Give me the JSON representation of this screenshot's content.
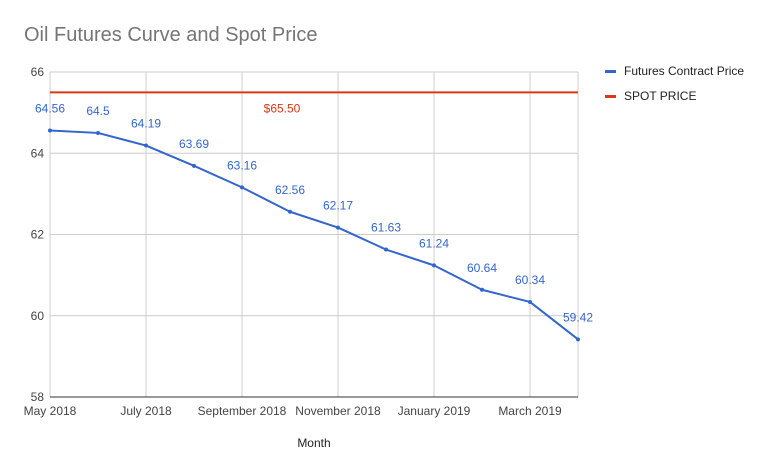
{
  "chart_data": {
    "type": "line",
    "title": "Oil Futures Curve and Spot Price",
    "xlabel": "Month",
    "ylabel": "",
    "ylim": [
      58,
      66
    ],
    "yticks": [
      58,
      60,
      62,
      64,
      66
    ],
    "x": [
      "May 2018",
      "June 2018",
      "July 2018",
      "August 2018",
      "September 2018",
      "October 2018",
      "November 2018",
      "December 2018",
      "January 2019",
      "February 2019",
      "March 2019",
      "April 2019"
    ],
    "x_tick_labels": [
      "May 2018",
      "July 2018",
      "September 2018",
      "November 2018",
      "January 2019",
      "March 2019"
    ],
    "grid": true,
    "legend_position": "right",
    "series": [
      {
        "name": "Futures Contract Price",
        "color": "#3366cc",
        "values": [
          64.56,
          64.5,
          64.19,
          63.69,
          63.16,
          62.56,
          62.17,
          61.63,
          61.24,
          60.64,
          60.34,
          59.42
        ],
        "labels": [
          "64.56",
          "64.5",
          "64.19",
          "63.69",
          "63.16",
          "62.56",
          "62.17",
          "61.63",
          "61.24",
          "60.64",
          "60.34",
          "59.42"
        ]
      },
      {
        "name": "SPOT PRICE",
        "color": "#dc3912",
        "value": 65.5,
        "label": "$65.50",
        "label_at": "September 2018"
      }
    ]
  }
}
